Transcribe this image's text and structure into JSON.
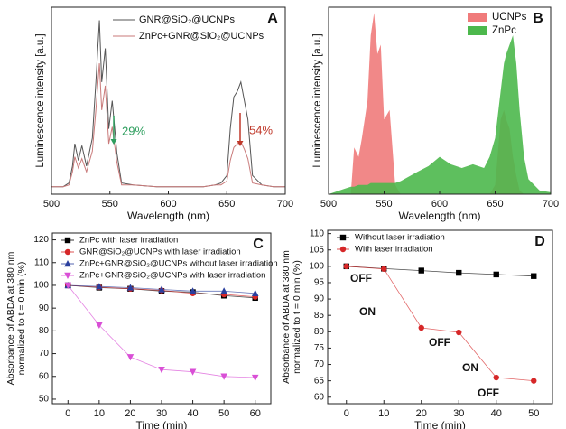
{
  "chart_data": [
    {
      "type": "line",
      "panel": "A",
      "x_label": "Wavelength (nm)",
      "y_label": "Luminescence intensity [a.u.]",
      "x": [
        500,
        510,
        515,
        518,
        520,
        523,
        526,
        530,
        535,
        538,
        541,
        543,
        546,
        549,
        552,
        556,
        560,
        570,
        590,
        610,
        630,
        640,
        645,
        650,
        653,
        656,
        659,
        662,
        665,
        668,
        672,
        680,
        690,
        700
      ],
      "series": [
        {
          "name": "GNR@SiO₂@UCNPs",
          "color": "#555555",
          "values": [
            0.04,
            0.04,
            0.06,
            0.15,
            0.27,
            0.18,
            0.26,
            0.15,
            0.3,
            0.6,
            0.93,
            0.6,
            0.78,
            0.35,
            0.5,
            0.22,
            0.06,
            0.05,
            0.04,
            0.04,
            0.04,
            0.05,
            0.06,
            0.1,
            0.35,
            0.52,
            0.55,
            0.6,
            0.5,
            0.4,
            0.1,
            0.05,
            0.04,
            0.04
          ]
        },
        {
          "name": "ZnPc+GNR@SiO₂@UCNPs",
          "color": "#c97a7a",
          "values": [
            0.04,
            0.04,
            0.05,
            0.12,
            0.2,
            0.14,
            0.19,
            0.12,
            0.23,
            0.45,
            0.7,
            0.45,
            0.58,
            0.27,
            0.36,
            0.17,
            0.05,
            0.05,
            0.04,
            0.04,
            0.04,
            0.05,
            0.05,
            0.07,
            0.18,
            0.25,
            0.27,
            0.28,
            0.24,
            0.19,
            0.06,
            0.05,
            0.04,
            0.04
          ]
        }
      ],
      "annotations": [
        {
          "text": "29%",
          "color": "#2e9e5e"
        },
        {
          "text": "54%",
          "color": "#c0392b"
        }
      ],
      "xlim": [
        500,
        700
      ],
      "xticks": [
        500,
        550,
        600,
        650,
        700
      ],
      "ylim": [
        0,
        1
      ],
      "legend": "upper right"
    },
    {
      "type": "area",
      "panel": "B",
      "x_label": "Wavelength (nm)",
      "y_label": "Luminescence intensity [a.u.]",
      "x": [
        500,
        515,
        520,
        523,
        527,
        530,
        535,
        538,
        541,
        544,
        547,
        550,
        555,
        560,
        565,
        580,
        590,
        600,
        610,
        620,
        630,
        640,
        645,
        650,
        655,
        658,
        660,
        663,
        666,
        669,
        672,
        676,
        680,
        690,
        700
      ],
      "series": [
        {
          "name": "UCNPs",
          "color": "#f07b7b",
          "values": [
            0,
            0,
            0,
            0.25,
            0.2,
            0.3,
            0.5,
            0.85,
            0.97,
            0.75,
            0.8,
            0.4,
            0.45,
            0.05,
            0,
            0,
            0,
            0,
            0,
            0,
            0,
            0,
            0,
            0.05,
            0.4,
            0.45,
            0.4,
            0.35,
            0.2,
            0.1,
            0.02,
            0,
            0,
            0,
            0
          ]
        },
        {
          "name": "ZnPc",
          "color": "#4cb84c",
          "values": [
            0,
            0.03,
            0.04,
            0.04,
            0.05,
            0.05,
            0.05,
            0.06,
            0.06,
            0.06,
            0.06,
            0.06,
            0.06,
            0.06,
            0.07,
            0.12,
            0.15,
            0.2,
            0.16,
            0.14,
            0.16,
            0.14,
            0.2,
            0.3,
            0.55,
            0.7,
            0.75,
            0.8,
            0.85,
            0.7,
            0.45,
            0.2,
            0.08,
            0.02,
            0.01
          ]
        }
      ],
      "xlim": [
        500,
        700
      ],
      "xticks": [
        500,
        550,
        600,
        650,
        700
      ],
      "ylim": [
        0,
        1
      ],
      "legend": "upper right"
    },
    {
      "type": "line",
      "panel": "C",
      "x_label": "Time (min)",
      "y_label": [
        "Absorbance of ABDA at 380 nm",
        "normalized to t = 0 min (%)"
      ],
      "x": [
        0,
        10,
        20,
        30,
        40,
        50,
        60
      ],
      "series": [
        {
          "name": "ZnPc with laser irradiation",
          "color": "#000000",
          "marker": "square",
          "values": [
            100,
            99,
            98.5,
            97.5,
            97,
            95.5,
            94.5
          ]
        },
        {
          "name": "GNR@SiO₂@UCNPs with laser irradiation",
          "color": "#d62728",
          "marker": "circle",
          "values": [
            100,
            99.2,
            98.5,
            97.8,
            96.5,
            96,
            95
          ]
        },
        {
          "name": "ZnPc+GNR@SiO₂@UCNPs without laser irradiation",
          "color": "#2a3f9e",
          "marker": "triangle",
          "values": [
            100,
            99.5,
            99,
            98.2,
            97.5,
            97.5,
            96.5
          ]
        },
        {
          "name": "ZnPc+GNR@SiO₂@UCNPs with laser irradiation",
          "color": "#d94fd6",
          "marker": "triangle-down",
          "values": [
            100,
            82.5,
            68.5,
            63,
            62,
            60,
            59.5
          ]
        }
      ],
      "xlim": [
        -5,
        65
      ],
      "xticks": [
        0,
        10,
        20,
        30,
        40,
        50,
        60
      ],
      "ylim": [
        48,
        123
      ],
      "yticks": [
        50,
        60,
        70,
        80,
        90,
        100,
        110,
        120
      ],
      "legend": "upper left"
    },
    {
      "type": "line",
      "panel": "D",
      "x_label": "Time (min)",
      "y_label": [
        "Absorbance of ABDA at 380 nm",
        "normalized to t = 0 min (%)"
      ],
      "x": [
        0,
        10,
        20,
        30,
        40,
        50
      ],
      "series": [
        {
          "name": "Without laser irradiation",
          "color": "#000000",
          "marker": "square",
          "values": [
            100,
            99.3,
            98.7,
            98,
            97.5,
            97
          ]
        },
        {
          "name": "With laser irradiation",
          "color": "#d62728",
          "marker": "circle",
          "values": [
            100,
            99.2,
            81.2,
            79.8,
            66,
            65
          ]
        }
      ],
      "annotations": [
        "OFF",
        "ON",
        "OFF",
        "ON",
        "OFF"
      ],
      "xlim": [
        -5,
        55
      ],
      "xticks": [
        0,
        10,
        20,
        30,
        40,
        50
      ],
      "ylim": [
        58,
        111
      ],
      "yticks": [
        60,
        65,
        70,
        75,
        80,
        85,
        90,
        95,
        100,
        105,
        110
      ],
      "legend": "upper left"
    }
  ]
}
